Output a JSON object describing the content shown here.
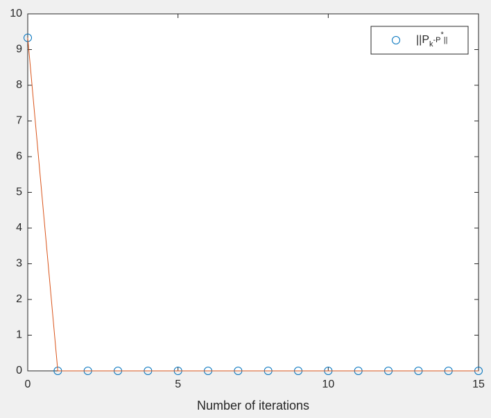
{
  "chart_data": {
    "type": "line",
    "xlabel": "Number of iterations",
    "x": [
      0,
      1,
      2,
      3,
      4,
      5,
      6,
      7,
      8,
      9,
      10,
      11,
      12,
      13,
      14,
      15
    ],
    "series": [
      {
        "name": [
          "||P",
          "k",
          "-P",
          "*",
          "||"
        ],
        "color": "#0072bd",
        "marker": "o",
        "line": false,
        "values": [
          9.33,
          0,
          0,
          0,
          0,
          0,
          0,
          0,
          0,
          0,
          0,
          0,
          0,
          0,
          0,
          0
        ]
      },
      {
        "color": "#d95319",
        "marker": "none",
        "line": true,
        "values": [
          9.33,
          0,
          0,
          0,
          0,
          0,
          0,
          0,
          0,
          0,
          0,
          0,
          0,
          0,
          0,
          0
        ]
      }
    ],
    "xlim": [
      0,
      15
    ],
    "xticks": [
      0,
      5,
      10,
      15
    ],
    "ylim": [
      0,
      10
    ],
    "yticks": [
      0,
      1,
      2,
      3,
      4,
      5,
      6,
      7,
      8,
      9,
      10
    ],
    "grid": false,
    "legend": "northeast"
  }
}
